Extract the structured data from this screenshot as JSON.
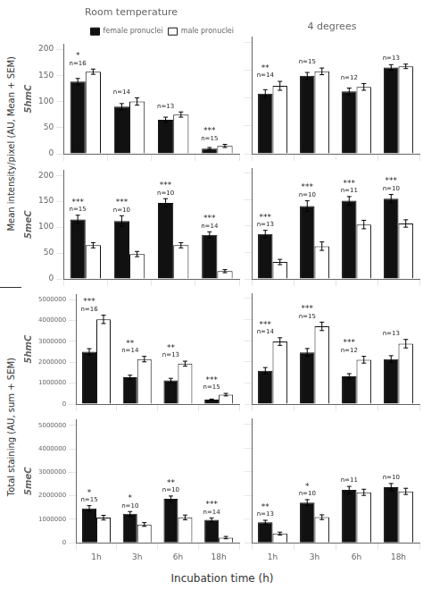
{
  "chart_data": [
    {
      "type": "bar",
      "title": "Room temperature",
      "ylabel": "5hmC",
      "annotations": [
        "Mean intensity/pixel (AU, Mean + SEM)"
      ],
      "categories": [
        "1h",
        "3h",
        "6h",
        "18h"
      ],
      "series": [
        {
          "name": "female pronuclei",
          "color": "#111111",
          "values": [
            138,
            90,
            65,
            10
          ],
          "errors": [
            6,
            6,
            5,
            2
          ]
        },
        {
          "name": "male pronuclei",
          "color": "#ffffff",
          "values": [
            157,
            100,
            75,
            15
          ],
          "errors": [
            5,
            7,
            5,
            3
          ]
        }
      ],
      "n_labels": [
        "n=16",
        "n=14",
        "n=13",
        "n=15"
      ],
      "sig_labels": [
        "*",
        null,
        null,
        "***"
      ],
      "ylim": [
        0,
        210
      ],
      "yticks": [
        0,
        50,
        100,
        150,
        200
      ],
      "grid": false,
      "legend": "upper right",
      "tick_labels": "y"
    },
    {
      "type": "bar",
      "title": "4 degrees",
      "categories": [
        "1h",
        "3h",
        "6h",
        "18h"
      ],
      "series": [
        {
          "name": "female pronuclei",
          "color": "#111111",
          "values": [
            108,
            140,
            112,
            155
          ],
          "errors": [
            7,
            6,
            6,
            5
          ]
        },
        {
          "name": "male pronuclei",
          "color": "#ffffff",
          "values": [
            122,
            148,
            120,
            157
          ],
          "errors": [
            8,
            6,
            6,
            4
          ]
        }
      ],
      "n_labels": [
        "n=14",
        "n=15",
        "n=12",
        "n=13"
      ],
      "sig_labels": [
        "**",
        null,
        null,
        null
      ],
      "ylim": [
        0,
        210
      ],
      "yticks": [
        0,
        50,
        100,
        150,
        200
      ],
      "grid": false,
      "tick_labels": false
    },
    {
      "type": "bar",
      "ylabel": "5meC",
      "categories": [
        "1h",
        "3h",
        "6h",
        "18h"
      ],
      "series": [
        {
          "name": "female pronuclei",
          "color": "#111111",
          "values": [
            115,
            112,
            147,
            85
          ],
          "errors": [
            8,
            10,
            8,
            6
          ]
        },
        {
          "name": "male pronuclei",
          "color": "#ffffff",
          "values": [
            65,
            48,
            65,
            15
          ],
          "errors": [
            5,
            5,
            5,
            3
          ]
        }
      ],
      "n_labels": [
        "n=15",
        "n=10",
        "n=10",
        "n=14"
      ],
      "sig_labels": [
        "***",
        "***",
        "***",
        "***"
      ],
      "ylim": [
        0,
        210
      ],
      "yticks": [
        0,
        50,
        100,
        150,
        200
      ],
      "grid": false,
      "tick_labels": "y"
    },
    {
      "type": "bar",
      "categories": [
        "1h",
        "3h",
        "6h",
        "18h"
      ],
      "series": [
        {
          "name": "female pronuclei",
          "color": "#111111",
          "values": [
            85,
            138,
            148,
            152
          ],
          "errors": [
            7,
            10,
            8,
            8
          ]
        },
        {
          "name": "male pronuclei",
          "color": "#ffffff",
          "values": [
            32,
            62,
            103,
            105
          ],
          "errors": [
            5,
            8,
            8,
            7
          ]
        }
      ],
      "n_labels": [
        "n=13",
        "n=10",
        "n=11",
        "n=10"
      ],
      "sig_labels": [
        "***",
        "***",
        "***",
        "***"
      ],
      "ylim": [
        0,
        210
      ],
      "yticks": [
        0,
        50,
        100,
        150,
        200
      ],
      "grid": false,
      "tick_labels": false
    },
    {
      "type": "bar",
      "ylabel": "5hmC",
      "annotations": [
        "Total staining (AU, sum + SEM)"
      ],
      "categories": [
        "1h",
        "3h",
        "6h",
        "18h"
      ],
      "series": [
        {
          "name": "female pronuclei",
          "color": "#111111",
          "values": [
            2500000,
            1280000,
            1130000,
            210000
          ],
          "errors": [
            150000,
            100000,
            100000,
            30000
          ]
        },
        {
          "name": "male pronuclei",
          "color": "#ffffff",
          "values": [
            4050000,
            2150000,
            1930000,
            450000
          ],
          "errors": [
            200000,
            130000,
            120000,
            60000
          ]
        }
      ],
      "n_labels": [
        "n=16",
        "n=14",
        "n=13",
        "n=15"
      ],
      "sig_labels": [
        "***",
        "**",
        "**",
        "***"
      ],
      "ylim": [
        0,
        5250000
      ],
      "yticks": [
        0,
        1000000,
        2000000,
        3000000,
        4000000,
        5000000
      ],
      "grid": false,
      "tick_labels": "y"
    },
    {
      "type": "bar",
      "categories": [
        "1h",
        "3h",
        "6h",
        "18h"
      ],
      "series": [
        {
          "name": "female pronuclei",
          "color": "#111111",
          "values": [
            1580000,
            2450000,
            1310000,
            2130000
          ],
          "errors": [
            150000,
            180000,
            130000,
            160000
          ]
        },
        {
          "name": "male pronuclei",
          "color": "#ffffff",
          "values": [
            2960000,
            3680000,
            2100000,
            2860000
          ],
          "errors": [
            180000,
            200000,
            160000,
            200000
          ]
        }
      ],
      "n_labels": [
        "n=14",
        "n=15",
        "n=12",
        "n=13"
      ],
      "sig_labels": [
        "***",
        "***",
        "***",
        null
      ],
      "ylim": [
        0,
        5250000
      ],
      "yticks": [
        0,
        1000000,
        2000000,
        3000000,
        4000000,
        5000000
      ],
      "grid": false,
      "tick_labels": false
    },
    {
      "type": "bar",
      "ylabel": "5meC",
      "xlabel": "Incubation time (h)",
      "categories": [
        "1h",
        "3h",
        "6h",
        "18h"
      ],
      "series": [
        {
          "name": "female pronuclei",
          "color": "#111111",
          "values": [
            1460000,
            1230000,
            1870000,
            980000
          ],
          "errors": [
            120000,
            100000,
            120000,
            80000
          ]
        },
        {
          "name": "male pronuclei",
          "color": "#ffffff",
          "values": [
            1070000,
            780000,
            1080000,
            220000
          ],
          "errors": [
            100000,
            80000,
            100000,
            50000
          ]
        }
      ],
      "n_labels": [
        "n=15",
        "n=10",
        "n=10",
        "n=14"
      ],
      "sig_labels": [
        "*",
        "*",
        "**",
        "***"
      ],
      "ylim": [
        0,
        5250000
      ],
      "yticks": [
        0,
        1000000,
        2000000,
        3000000,
        4000000,
        5000000
      ],
      "grid": false
    },
    {
      "type": "bar",
      "categories": [
        "1h",
        "3h",
        "6h",
        "18h"
      ],
      "series": [
        {
          "name": "female pronuclei",
          "color": "#111111",
          "values": [
            870000,
            1700000,
            2230000,
            2350000
          ],
          "errors": [
            80000,
            120000,
            150000,
            150000
          ]
        },
        {
          "name": "male pronuclei",
          "color": "#ffffff",
          "values": [
            390000,
            1080000,
            2130000,
            2170000
          ],
          "errors": [
            60000,
            100000,
            130000,
            130000
          ]
        }
      ],
      "n_labels": [
        "n=13",
        "n=10",
        "n=11",
        "n=10"
      ],
      "sig_labels": [
        "**",
        "*",
        null,
        null
      ],
      "ylim": [
        0,
        5250000
      ],
      "yticks": [
        0,
        1000000,
        2000000,
        3000000,
        4000000,
        5000000
      ],
      "grid": false,
      "tick_labels": "x"
    }
  ]
}
